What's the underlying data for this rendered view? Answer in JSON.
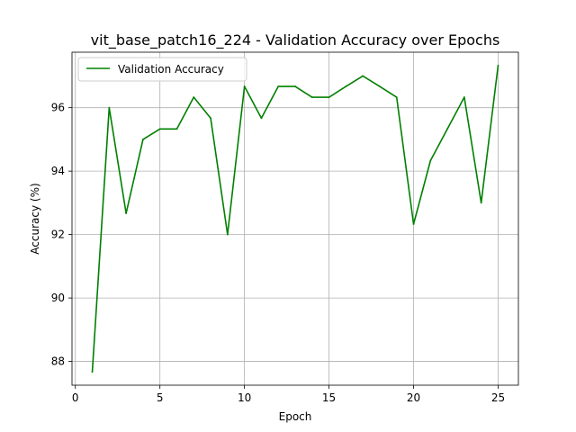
{
  "chart_data": {
    "type": "line",
    "title": "vit_base_patch16_224 - Validation Accuracy over Epochs",
    "xlabel": "Epoch",
    "ylabel": "Accuracy (%)",
    "xlim": [
      -0.2,
      26.2
    ],
    "ylim": [
      87.25,
      97.75
    ],
    "xticks": [
      0,
      5,
      10,
      15,
      20,
      25
    ],
    "yticks": [
      88,
      90,
      92,
      94,
      96
    ],
    "grid": true,
    "legend_position": "top-left",
    "series": [
      {
        "name": "Validation Accuracy",
        "color": "#008000",
        "x": [
          1,
          2,
          3,
          4,
          5,
          6,
          7,
          8,
          9,
          10,
          11,
          12,
          13,
          14,
          15,
          16,
          17,
          18,
          19,
          20,
          21,
          22,
          23,
          24,
          25
        ],
        "y": [
          87.67,
          96.0,
          92.67,
          95.0,
          95.33,
          95.33,
          96.33,
          95.67,
          92.0,
          96.67,
          95.67,
          96.67,
          96.67,
          96.33,
          96.33,
          96.67,
          97.0,
          96.67,
          96.33,
          92.33,
          94.33,
          95.33,
          96.33,
          93.0,
          97.33
        ]
      }
    ]
  }
}
